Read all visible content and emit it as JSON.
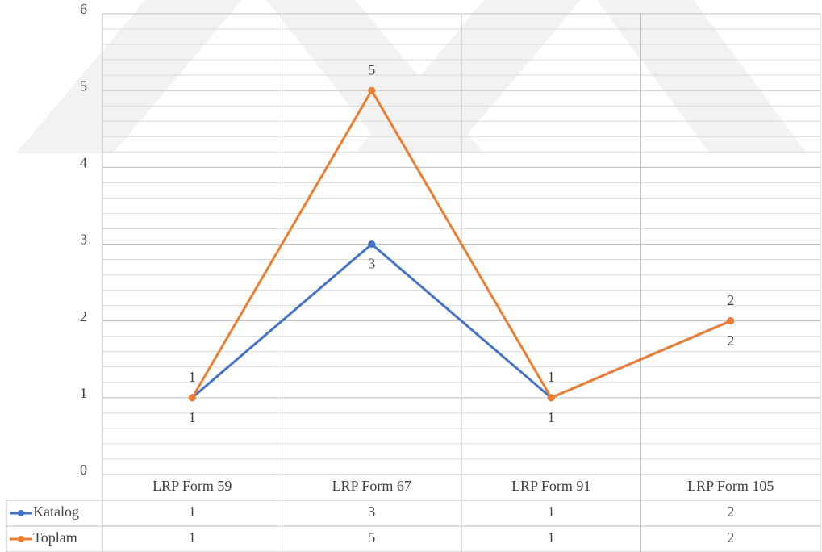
{
  "chart_data": {
    "type": "line",
    "categories": [
      "LRP Form 59",
      "LRP Form 67",
      "LRP Form 91",
      "LRP Form 105"
    ],
    "series": [
      {
        "name": "Katalog",
        "color": "#4472c4",
        "values": [
          1,
          3,
          1,
          2
        ]
      },
      {
        "name": "Toplam",
        "color": "#ed7d31",
        "values": [
          1,
          5,
          1,
          2
        ]
      }
    ],
    "ylim": [
      0,
      6
    ],
    "yticks": [
      0,
      1,
      2,
      3,
      4,
      5,
      6
    ],
    "grid": true,
    "minor_grid_divisions": 5,
    "data_table": true
  }
}
